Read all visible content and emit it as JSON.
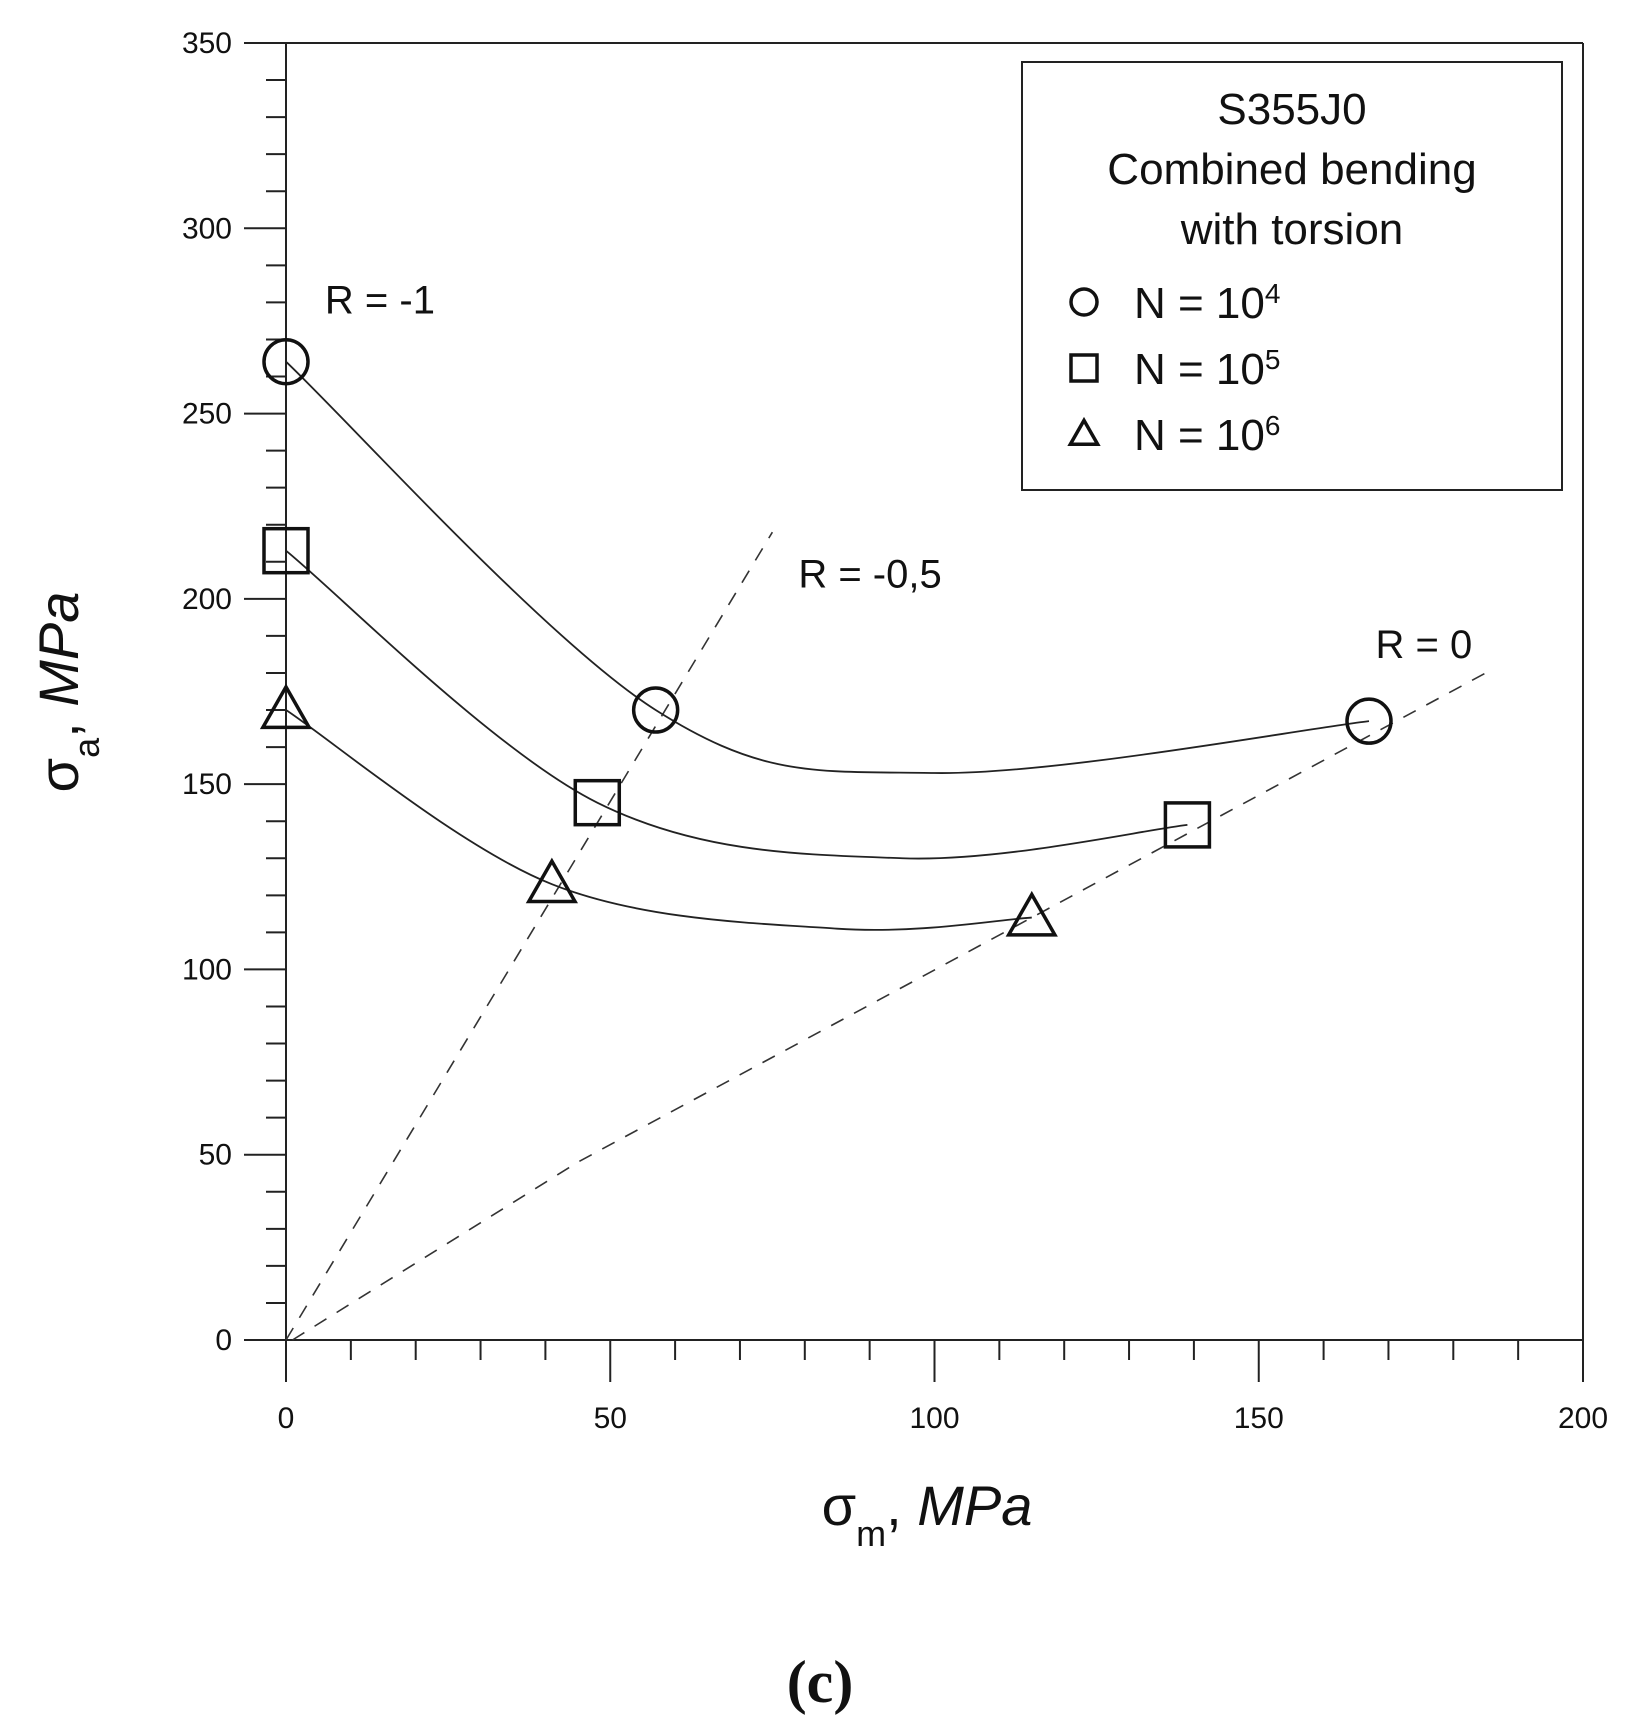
{
  "chart_data": {
    "type": "scatter",
    "title": "",
    "xlabel": {
      "symbol": "σ",
      "sub": "m",
      "sep": ", ",
      "unit": "MPa"
    },
    "ylabel": {
      "symbol": "σ",
      "sub": "a",
      "sep": ", ",
      "unit": "MPa"
    },
    "xlim": [
      0,
      200
    ],
    "ylim": [
      0,
      350
    ],
    "x_major_ticks": [
      0,
      50,
      100,
      150,
      200
    ],
    "y_major_ticks": [
      0,
      50,
      100,
      150,
      200,
      250,
      300,
      350
    ],
    "x_minor_step": 10,
    "y_minor_step": 10,
    "legend": {
      "position": "top-right",
      "title_lines": [
        "S355J0",
        "Combined bending",
        "with torsion"
      ],
      "entries": [
        {
          "marker": "circle",
          "label": "N = 10",
          "sup": "4"
        },
        {
          "marker": "square",
          "label": "N = 10",
          "sup": "5"
        },
        {
          "marker": "triangle",
          "label": "N = 10",
          "sup": "6"
        }
      ]
    },
    "series": [
      {
        "name": "N = 10^4",
        "marker": "circle",
        "points": [
          {
            "x": 0,
            "y": 264
          },
          {
            "x": 57,
            "y": 170
          },
          {
            "x": 167,
            "y": 167
          }
        ],
        "fit": [
          {
            "x": 0,
            "y": 264
          },
          {
            "x": 57,
            "y": 170
          },
          {
            "x": 100,
            "y": 153
          },
          {
            "x": 167,
            "y": 167
          }
        ]
      },
      {
        "name": "N = 10^5",
        "marker": "square",
        "points": [
          {
            "x": 0,
            "y": 213
          },
          {
            "x": 48,
            "y": 145
          },
          {
            "x": 139,
            "y": 139
          }
        ],
        "fit": [
          {
            "x": 0,
            "y": 213
          },
          {
            "x": 48,
            "y": 145
          },
          {
            "x": 95,
            "y": 130
          },
          {
            "x": 139,
            "y": 139
          }
        ]
      },
      {
        "name": "N = 10^6",
        "marker": "triangle",
        "points": [
          {
            "x": 0,
            "y": 170
          },
          {
            "x": 41,
            "y": 123
          },
          {
            "x": 115,
            "y": 114
          }
        ],
        "fit": [
          {
            "x": 0,
            "y": 170
          },
          {
            "x": 41,
            "y": 123
          },
          {
            "x": 85,
            "y": 111
          },
          {
            "x": 115,
            "y": 114
          }
        ]
      }
    ],
    "reference_lines": [
      {
        "label": "R = -1",
        "points": [
          {
            "x": 0,
            "y": 0
          },
          {
            "x": 0,
            "y": 270
          }
        ],
        "style": "none"
      },
      {
        "label": "R = -0,5",
        "points": [
          {
            "x": 0,
            "y": 0
          },
          {
            "x": 75,
            "y": 218
          }
        ],
        "style": "dashed"
      },
      {
        "label": "R = 0",
        "points": [
          {
            "x": 1,
            "y": 0
          },
          {
            "x": 45,
            "y": 48
          },
          {
            "x": 185,
            "y": 180
          }
        ],
        "style": "dashed"
      }
    ],
    "annotations": [
      {
        "text": "R = -1",
        "x": 6,
        "y": 277
      },
      {
        "text": "R = -0,5",
        "x": 79,
        "y": 203
      },
      {
        "text": "R = 0",
        "x": 168,
        "y": 184
      }
    ],
    "caption": "(c)"
  }
}
